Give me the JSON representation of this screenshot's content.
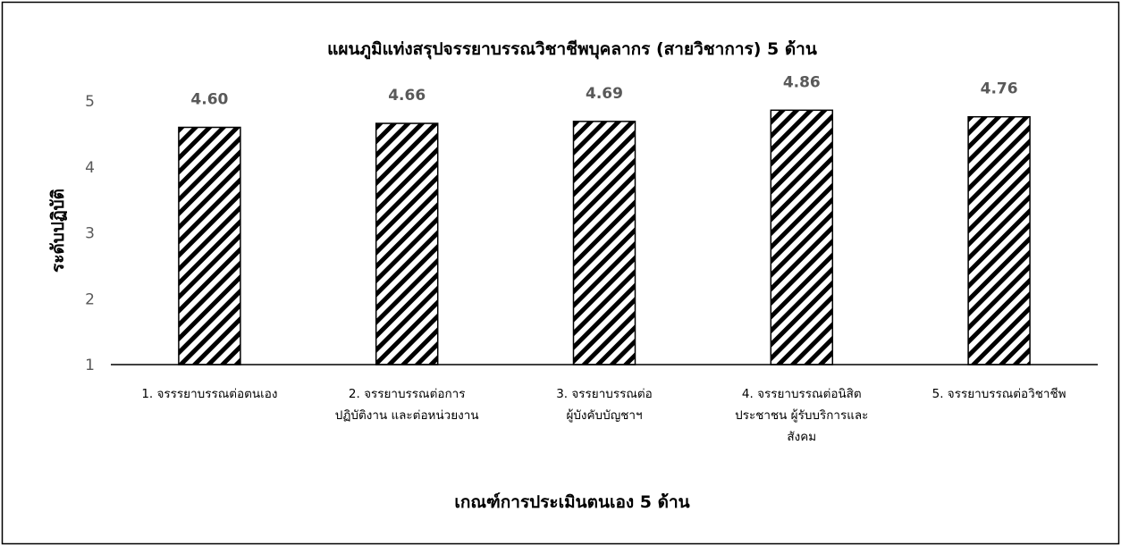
{
  "chart_data": {
    "type": "bar",
    "title": "แผนภูมิแท่งสรุปจรรยาบรรณวิชาชีพบุคลากร (สายวิชาการ) 5 ด้าน",
    "xlabel": "เกณฑ์การประเมินตนเอง 5 ด้าน",
    "ylabel": "ระดับปฏิบัติ",
    "ylim": [
      1,
      5
    ],
    "yticks": [
      "1",
      "2",
      "3",
      "4",
      "5"
    ],
    "grid": false,
    "legend": "none",
    "categories": [
      [
        "1.  จรรรยาบรรณต่อตนเอง"
      ],
      [
        "2.  จรรยาบรรณต่อการ",
        "ปฏิบัติงาน และต่อหน่วยงาน"
      ],
      [
        "3.  จรรยาบรรณต่อ",
        "ผู้บังคับบัญชาฯ"
      ],
      [
        "4.  จรรยาบรรณต่อนิสิต",
        "ประชาชน ผู้รับบริการและ",
        "สังคม"
      ],
      [
        "5.  จรรยาบรรณต่อวิชาชีพ"
      ]
    ],
    "values": [
      4.6,
      4.66,
      4.69,
      4.86,
      4.76
    ],
    "data_labels": [
      "4.60",
      "4.66",
      "4.69",
      "4.86",
      "4.76"
    ],
    "colors": {
      "bar_stroke": "#000000",
      "hatch": "#000000",
      "axis": "#000000",
      "tick_text": "#595959",
      "frame": "#000000"
    }
  }
}
